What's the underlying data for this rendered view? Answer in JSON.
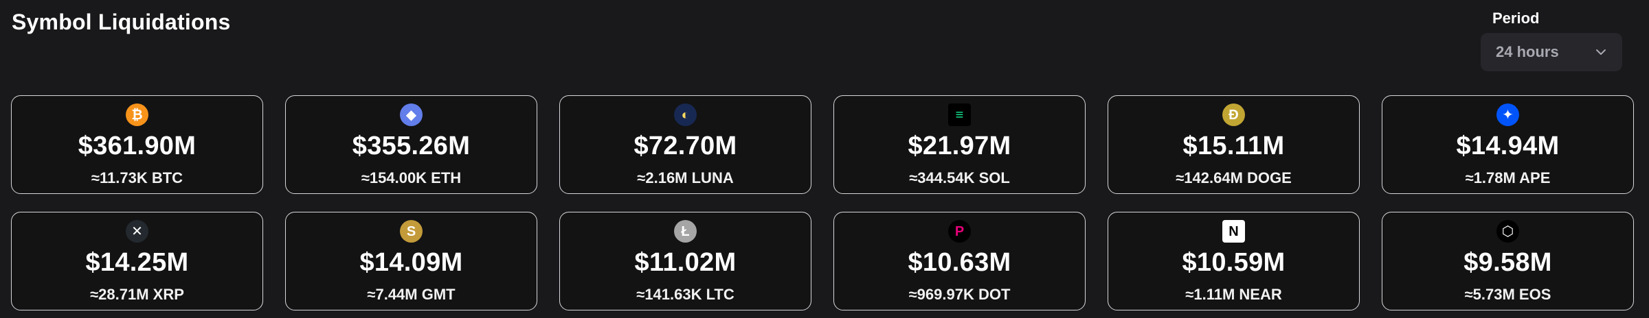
{
  "header": {
    "title": "Symbol Liquidations"
  },
  "period": {
    "label": "Period",
    "value": "24 hours",
    "icon": "chevron-down-icon"
  },
  "colors": {
    "background": "#19191b",
    "card_border": "#d8d8dc",
    "select_bg": "#26262b"
  },
  "cards": [
    {
      "symbol": "BTC",
      "amount": "$361.90M",
      "sub": "≈11.73K BTC",
      "icon": "btc-icon",
      "glyph": "₿",
      "color": "#f7931a"
    },
    {
      "symbol": "ETH",
      "amount": "$355.26M",
      "sub": "≈154.00K ETH",
      "icon": "eth-icon",
      "glyph": "◆",
      "color": "#627eea"
    },
    {
      "symbol": "LUNA",
      "amount": "$72.70M",
      "sub": "≈2.16M LUNA",
      "icon": "luna-icon",
      "glyph": "◐",
      "color": "#172852"
    },
    {
      "symbol": "SOL",
      "amount": "$21.97M",
      "sub": "≈344.54K SOL",
      "icon": "sol-icon",
      "glyph": "≡",
      "color": "#000000"
    },
    {
      "symbol": "DOGE",
      "amount": "$15.11M",
      "sub": "≈142.64M DOGE",
      "icon": "doge-icon",
      "glyph": "Ð",
      "color": "#c2a633"
    },
    {
      "symbol": "APE",
      "amount": "$14.94M",
      "sub": "≈1.78M APE",
      "icon": "ape-icon",
      "glyph": "✦",
      "color": "#0054f9"
    },
    {
      "symbol": "XRP",
      "amount": "$14.25M",
      "sub": "≈28.71M XRP",
      "icon": "xrp-icon",
      "glyph": "✕",
      "color": "#23292f"
    },
    {
      "symbol": "GMT",
      "amount": "$14.09M",
      "sub": "≈7.44M GMT",
      "icon": "gmt-icon",
      "glyph": "S",
      "color": "#c39b3a"
    },
    {
      "symbol": "LTC",
      "amount": "$11.02M",
      "sub": "≈141.63K LTC",
      "icon": "ltc-icon",
      "glyph": "Ł",
      "color": "#a5a5a5"
    },
    {
      "symbol": "DOT",
      "amount": "$10.63M",
      "sub": "≈969.97K DOT",
      "icon": "dot-icon",
      "glyph": "P",
      "color": "#000000"
    },
    {
      "symbol": "NEAR",
      "amount": "$10.59M",
      "sub": "≈1.11M NEAR",
      "icon": "near-icon",
      "glyph": "N",
      "color": "#ffffff"
    },
    {
      "symbol": "EOS",
      "amount": "$9.58M",
      "sub": "≈5.73M EOS",
      "icon": "eos-icon",
      "glyph": "⬡",
      "color": "#000000"
    }
  ]
}
